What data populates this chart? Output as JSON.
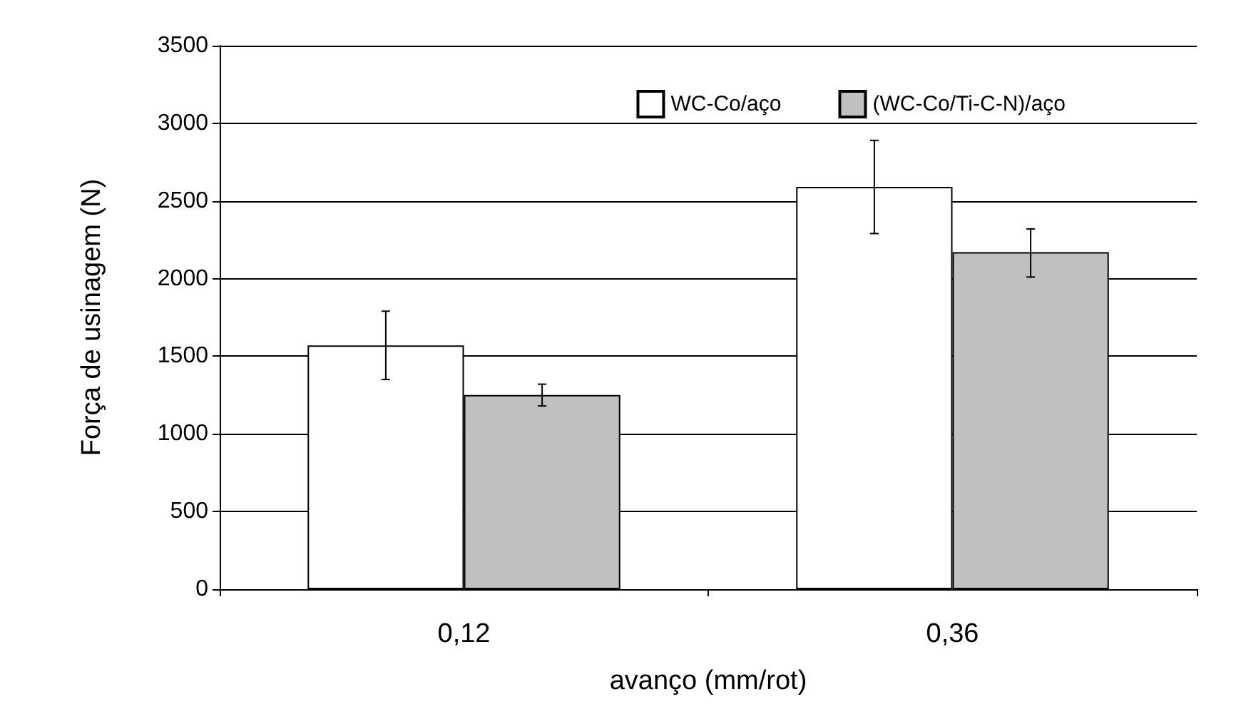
{
  "chart_data": {
    "type": "bar",
    "xlabel": "avanço (mm/rot)",
    "ylabel": "Força de usinagem (N)",
    "categories": [
      "0,12",
      "0,36"
    ],
    "series": [
      {
        "name": "WC-Co/aço",
        "color": "#ffffff",
        "values": [
          1570,
          2590
        ],
        "errors": [
          [
            1350,
            1790
          ],
          [
            2290,
            2890
          ]
        ]
      },
      {
        "name": "(WC-Co/Ti-C-N)/aço",
        "color": "#c0c0c0",
        "values": [
          1250,
          2170
        ],
        "errors": [
          [
            1180,
            1320
          ],
          [
            2010,
            2320
          ]
        ]
      }
    ],
    "ylim": [
      0,
      3500
    ],
    "yticks": [
      0,
      500,
      1000,
      1500,
      2000,
      2500,
      3000,
      3500
    ],
    "grid": "y",
    "legend": "top right"
  }
}
